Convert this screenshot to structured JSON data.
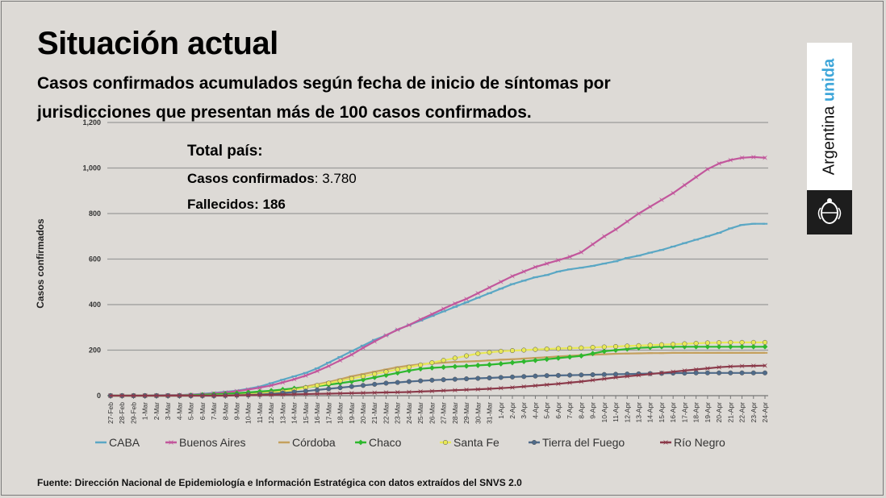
{
  "title": "Situación actual",
  "subtitle_line1": "Casos confirmados acumulados según fecha de inicio de síntomas por",
  "subtitle_line2": "jurisdicciones que presentan más de 100 casos confirmados.",
  "logo": {
    "word1": "Argentina",
    "word2": "unida",
    "accent_color": "#3ea6d9"
  },
  "source": "Fuente: Dirección Nacional de Epidemiología e Información Estratégica con datos extraídos del SNVS 2.0",
  "annotation": {
    "heading": "Total país:",
    "line1_label": "Casos confirmados",
    "line1_value": ": 3.780",
    "line2": "Fallecidos: 186"
  },
  "chart_data": {
    "type": "line",
    "title": "",
    "xlabel": "",
    "ylabel": "Casos confirmados",
    "ylim": [
      0,
      1200
    ],
    "yticks": [
      0,
      200,
      400,
      600,
      800,
      1000,
      1200
    ],
    "ytick_labels": [
      "0",
      "200",
      "400",
      "600",
      "800",
      "1,000",
      "1,200"
    ],
    "grid": true,
    "legend_position": "bottom",
    "x": [
      "27-Feb",
      "28-Feb",
      "29-Feb",
      "1-Mar",
      "2-Mar",
      "3-Mar",
      "4-Mar",
      "5-Mar",
      "6-Mar",
      "7-Mar",
      "8-Mar",
      "9-Mar",
      "10-Mar",
      "11-Mar",
      "12-Mar",
      "13-Mar",
      "14-Mar",
      "15-Mar",
      "16-Mar",
      "17-Mar",
      "18-Mar",
      "19-Mar",
      "20-Mar",
      "21-Mar",
      "22-Mar",
      "23-Mar",
      "24-Mar",
      "25-Mar",
      "26-Mar",
      "27-Mar",
      "28-Mar",
      "29-Mar",
      "30-Mar",
      "31-Mar",
      "1-Apr",
      "2-Apr",
      "3-Apr",
      "4-Apr",
      "5-Apr",
      "6-Apr",
      "7-Apr",
      "8-Apr",
      "9-Apr",
      "10-Apr",
      "11-Apr",
      "12-Apr",
      "13-Apr",
      "14-Apr",
      "15-Apr",
      "16-Apr",
      "17-Apr",
      "18-Apr",
      "19-Apr",
      "20-Apr",
      "21-Apr",
      "22-Apr",
      "23-Apr",
      "24-Apr"
    ],
    "xtick_labels": [
      "27-Feb",
      "28-Feb",
      "29-Feb",
      "1-Mar",
      "2-Mar",
      "3-Mar",
      "4-Mar",
      "5-Mar",
      "6-Mar",
      "7-Mar",
      "8-Mar",
      "9-Mar",
      "10-Mar",
      "11-Mar",
      "12-Mar",
      "13-Mar",
      "14-Mar",
      "15-Mar",
      "16-Mar",
      "17-Mar",
      "18-Mar",
      "19-Mar",
      "20-Mar",
      "21-Mar",
      "22-Mar",
      "23-Mar",
      "24-Mar",
      "25-Mar",
      "26-Mar",
      "27-Mar",
      "28-Mar",
      "29-Mar",
      "30-Mar",
      "31-Mar",
      "1-Apr",
      "2-Apr",
      "3-Apr",
      "4-Apr",
      "5-Apr",
      "6-Apr",
      "7-Apr",
      "8-Apr",
      "9-Apr",
      "10-Apr",
      "11-Apr",
      "12-Apr",
      "13-Apr",
      "14-Apr",
      "15-Apr",
      "16-Apr",
      "17-Apr",
      "18-Apr",
      "19-Apr",
      "20-Apr",
      "21-Apr",
      "22-Apr",
      "23-Apr",
      "24-Apr"
    ],
    "series": [
      {
        "name": "CABA",
        "color": "#5aa7c4",
        "marker": "dash",
        "values": [
          1,
          1,
          1,
          1,
          2,
          2,
          3,
          5,
          8,
          12,
          17,
          22,
          30,
          40,
          55,
          70,
          85,
          100,
          120,
          145,
          170,
          195,
          220,
          245,
          265,
          290,
          310,
          330,
          350,
          370,
          390,
          410,
          430,
          450,
          470,
          490,
          505,
          520,
          530,
          545,
          555,
          562,
          570,
          580,
          590,
          605,
          615,
          628,
          640,
          655,
          670,
          685,
          700,
          715,
          735,
          750,
          755,
          755
        ]
      },
      {
        "name": "Buenos Aires",
        "color": "#c2579c",
        "marker": "star",
        "values": [
          0,
          0,
          0,
          1,
          1,
          2,
          3,
          4,
          6,
          10,
          14,
          20,
          27,
          35,
          45,
          58,
          72,
          88,
          108,
          130,
          155,
          180,
          210,
          238,
          265,
          290,
          310,
          335,
          358,
          382,
          405,
          425,
          450,
          475,
          500,
          525,
          545,
          565,
          580,
          595,
          610,
          630,
          665,
          700,
          730,
          765,
          800,
          830,
          860,
          890,
          925,
          960,
          995,
          1020,
          1035,
          1045,
          1048,
          1045
        ]
      },
      {
        "name": "Córdoba",
        "color": "#c4a05e",
        "marker": "dash",
        "values": [
          0,
          0,
          0,
          0,
          0,
          0,
          0,
          0,
          1,
          2,
          3,
          5,
          8,
          12,
          18,
          25,
          32,
          40,
          50,
          60,
          72,
          85,
          95,
          105,
          115,
          125,
          132,
          138,
          142,
          145,
          148,
          150,
          152,
          155,
          158,
          160,
          163,
          166,
          169,
          172,
          175,
          178,
          180,
          182,
          184,
          185,
          186,
          187,
          187,
          188,
          188,
          188,
          188,
          188,
          188,
          188,
          188,
          188
        ]
      },
      {
        "name": "Chaco",
        "color": "#2eb82e",
        "marker": "diamond",
        "values": [
          0,
          0,
          0,
          0,
          0,
          0,
          1,
          2,
          4,
          6,
          8,
          11,
          14,
          18,
          22,
          27,
          32,
          36,
          42,
          48,
          55,
          62,
          70,
          80,
          90,
          100,
          110,
          118,
          122,
          125,
          128,
          130,
          133,
          136,
          140,
          145,
          150,
          155,
          160,
          165,
          170,
          175,
          185,
          195,
          200,
          205,
          210,
          212,
          215,
          215,
          215,
          215,
          215,
          215,
          215,
          215,
          215,
          215
        ]
      },
      {
        "name": "Santa Fe",
        "color": "#e8e857",
        "marker": "circle",
        "values": [
          0,
          0,
          0,
          0,
          0,
          0,
          0,
          0,
          0,
          1,
          2,
          3,
          5,
          8,
          12,
          18,
          25,
          35,
          45,
          55,
          65,
          75,
          85,
          95,
          105,
          115,
          125,
          135,
          145,
          155,
          165,
          175,
          185,
          190,
          195,
          198,
          200,
          203,
          205,
          207,
          209,
          210,
          212,
          214,
          216,
          218,
          220,
          222,
          224,
          226,
          228,
          230,
          232,
          233,
          234,
          234,
          234,
          234
        ]
      },
      {
        "name": "Tierra del Fuego",
        "color": "#4f6b8a",
        "marker": "circle",
        "values": [
          0,
          0,
          0,
          0,
          0,
          0,
          0,
          0,
          0,
          0,
          1,
          2,
          3,
          5,
          8,
          12,
          16,
          20,
          25,
          30,
          35,
          40,
          45,
          50,
          55,
          58,
          62,
          65,
          68,
          70,
          72,
          74,
          76,
          78,
          80,
          82,
          84,
          86,
          88,
          89,
          90,
          91,
          92,
          93,
          94,
          95,
          96,
          97,
          98,
          99,
          99,
          100,
          100,
          100,
          100,
          100,
          100,
          100
        ]
      },
      {
        "name": "Río Negro",
        "color": "#8b3a4a",
        "marker": "star",
        "values": [
          0,
          0,
          0,
          0,
          0,
          0,
          0,
          0,
          0,
          0,
          0,
          1,
          2,
          3,
          4,
          5,
          6,
          7,
          8,
          9,
          10,
          11,
          12,
          13,
          14,
          15,
          16,
          18,
          20,
          22,
          24,
          26,
          28,
          30,
          33,
          36,
          40,
          44,
          48,
          52,
          57,
          62,
          68,
          74,
          80,
          85,
          90,
          95,
          100,
          105,
          110,
          115,
          120,
          125,
          128,
          130,
          131,
          132
        ]
      }
    ]
  }
}
